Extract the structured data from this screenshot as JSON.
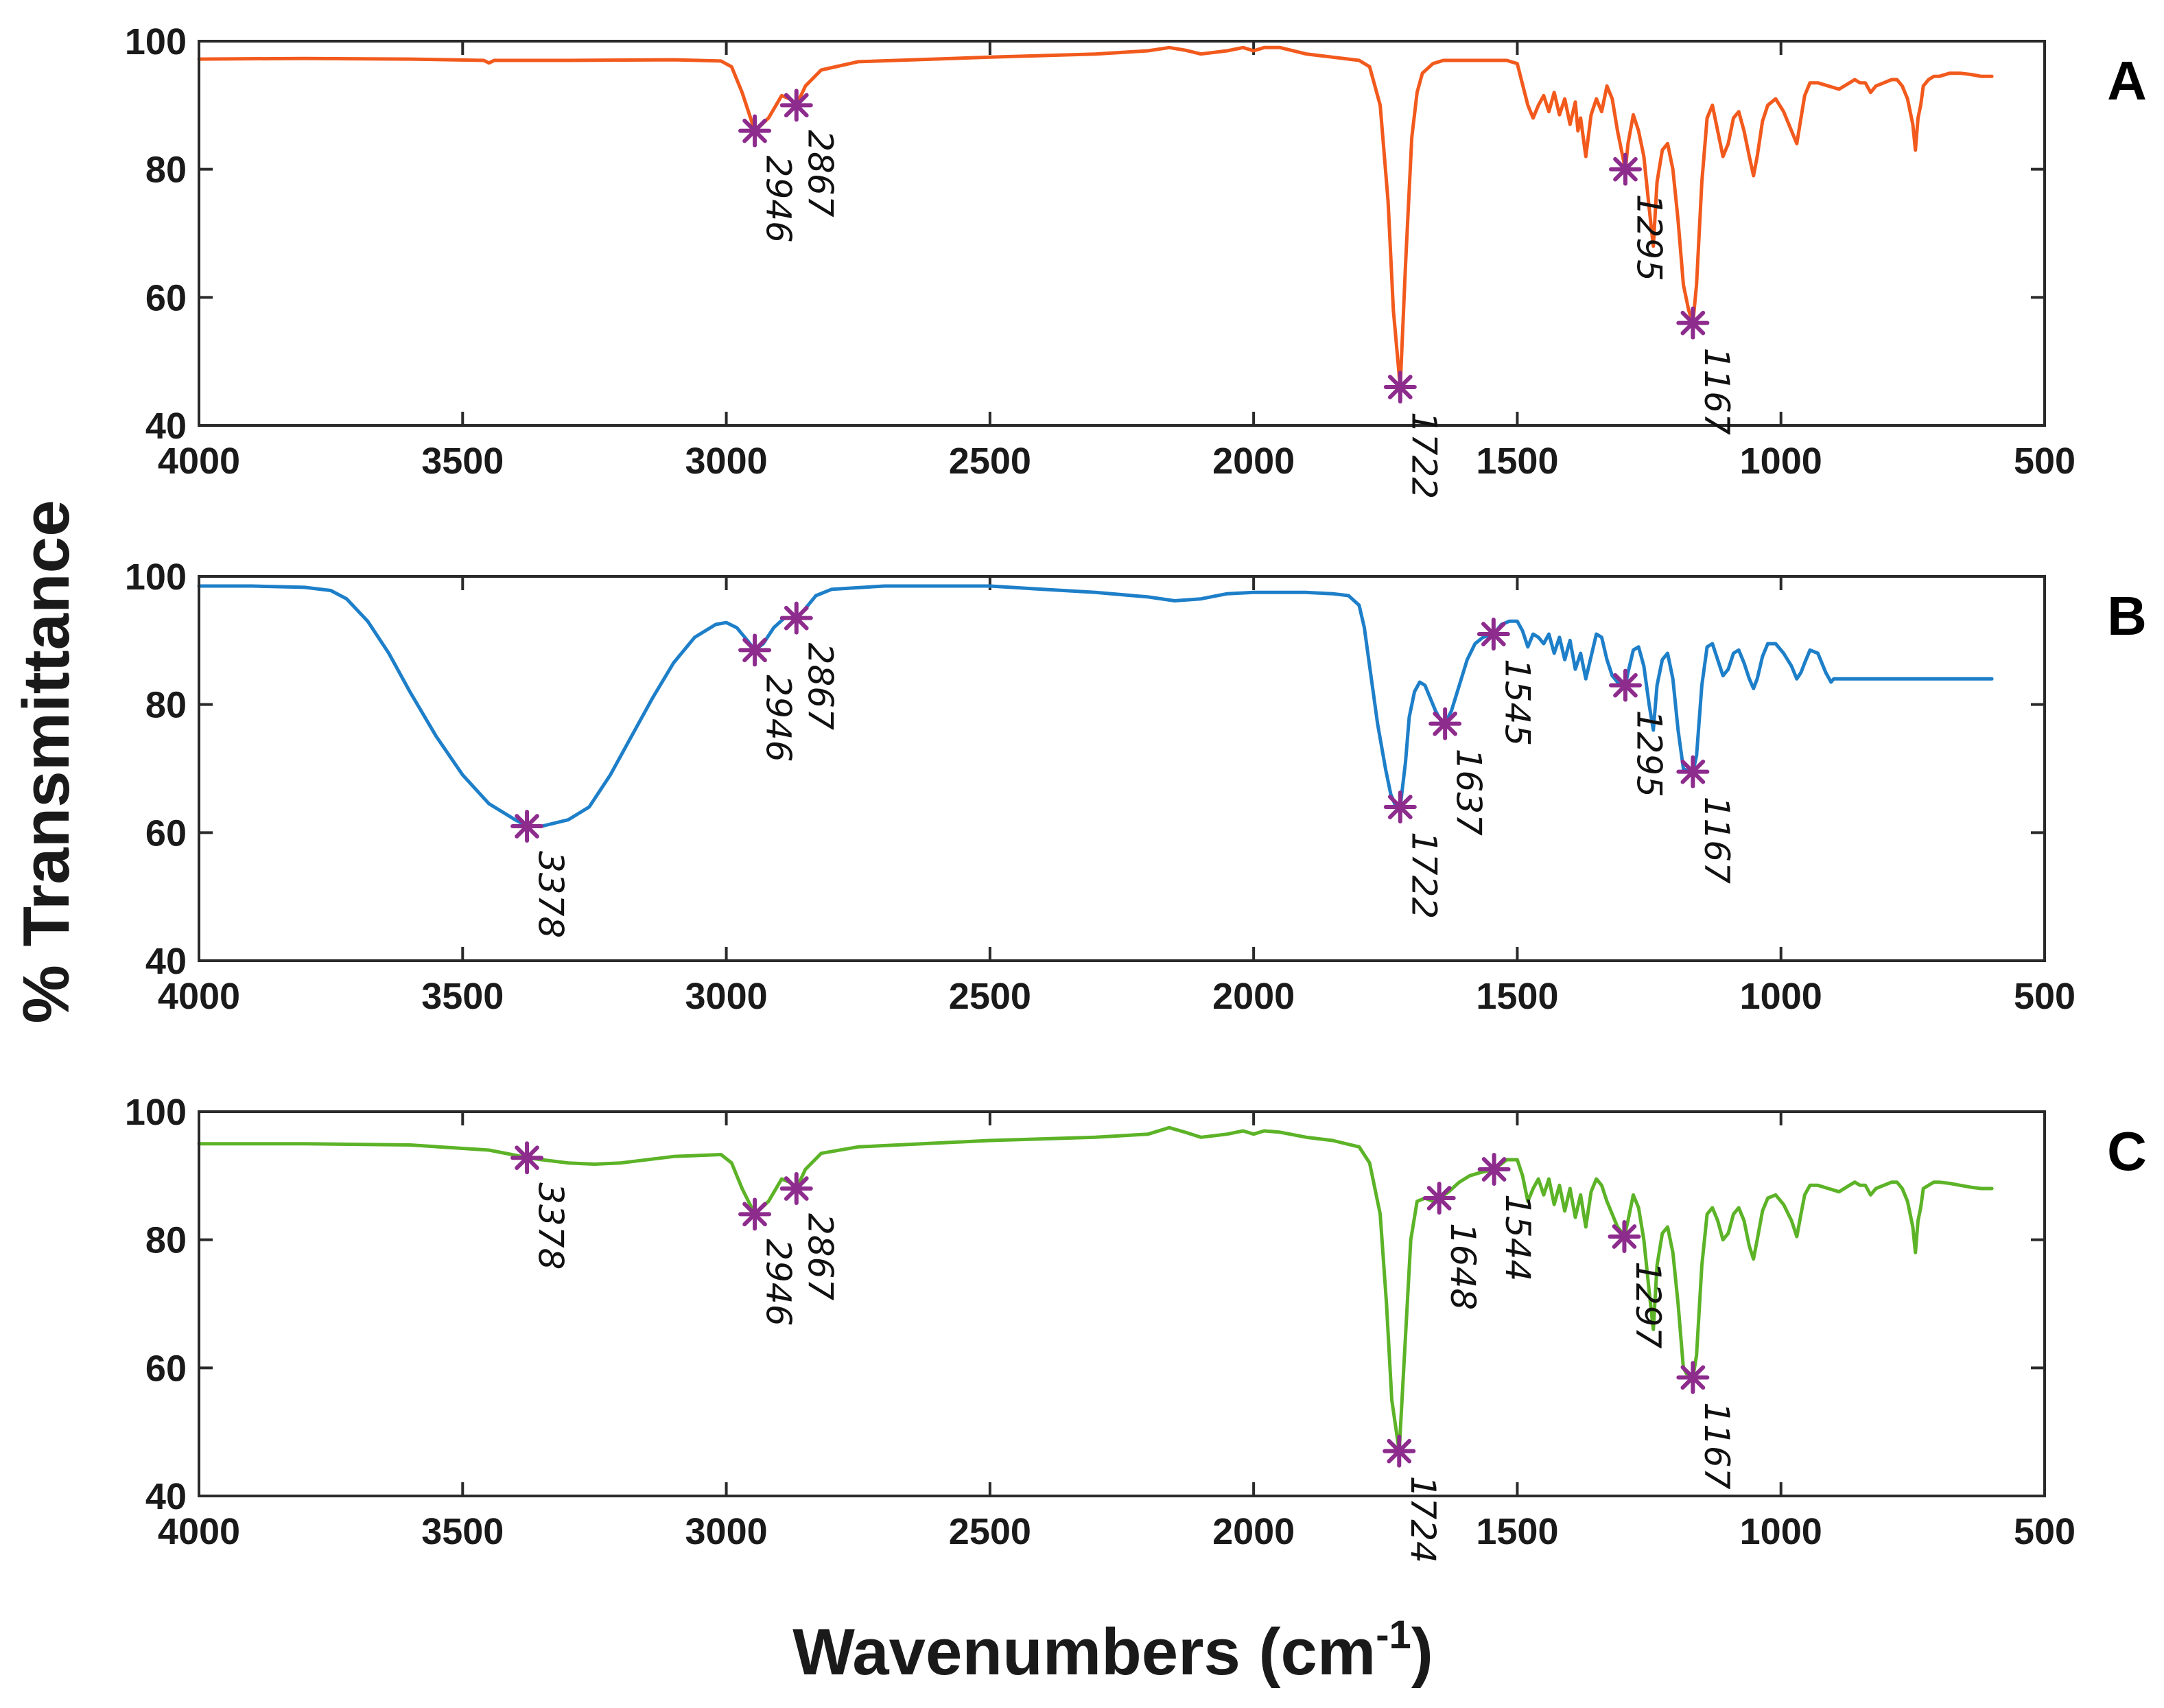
{
  "figure": {
    "ylabel": "% Transmittance",
    "xlabel": {
      "text": "Wavenumbers (cm",
      "sup": "-1",
      "suffix": ")"
    }
  },
  "colors": {
    "marker": "#8e2c8e",
    "frame": "#2a2a2a"
  },
  "chart_data": [
    {
      "type": "line",
      "panel_label": "A",
      "color": "#f25a1d",
      "xlim": [
        4000,
        500
      ],
      "ylim": [
        40,
        100
      ],
      "xticks": [
        4000,
        3500,
        3000,
        2500,
        2000,
        1500,
        1000,
        500
      ],
      "yticks": [
        40,
        60,
        80,
        100
      ],
      "series": [
        {
          "x": [
            4000,
            3800,
            3600,
            3460,
            3450,
            3440,
            3300,
            3100,
            3010,
            2990,
            2970,
            2946,
            2920,
            2895,
            2880,
            2867,
            2850,
            2820,
            2750,
            2500,
            2300,
            2200,
            2160,
            2130,
            2100,
            2050,
            2020,
            2000,
            1980,
            1950,
            1900,
            1850,
            1800,
            1780,
            1760,
            1745,
            1735,
            1722,
            1712,
            1700,
            1690,
            1680,
            1660,
            1640,
            1600,
            1560,
            1520,
            1500,
            1480,
            1470,
            1460,
            1450,
            1440,
            1430,
            1420,
            1410,
            1400,
            1390,
            1385,
            1380,
            1370,
            1360,
            1350,
            1340,
            1330,
            1320,
            1310,
            1300,
            1295,
            1290,
            1280,
            1270,
            1260,
            1250,
            1242,
            1235,
            1225,
            1215,
            1205,
            1195,
            1185,
            1175,
            1167,
            1160,
            1150,
            1140,
            1130,
            1120,
            1110,
            1100,
            1090,
            1080,
            1070,
            1060,
            1052,
            1045,
            1035,
            1025,
            1010,
            995,
            980,
            970,
            962,
            955,
            945,
            930,
            910,
            890,
            870,
            860,
            850,
            840,
            830,
            820,
            805,
            790,
            780,
            770,
            760,
            750,
            745,
            740,
            735,
            730,
            720,
            710,
            700,
            680,
            660,
            640,
            620,
            600
          ],
          "y": [
            97.2,
            97.3,
            97.2,
            97.0,
            96.6,
            97.0,
            97.0,
            97.1,
            96.9,
            96.0,
            92.0,
            86.0,
            88.0,
            91.5,
            91.0,
            90.0,
            93.0,
            95.5,
            96.8,
            97.5,
            98.0,
            98.5,
            99.0,
            98.6,
            98.0,
            98.5,
            99.0,
            98.5,
            99.0,
            99.0,
            98.0,
            97.5,
            97.0,
            96.0,
            90.0,
            75.0,
            58.0,
            46.0,
            65.0,
            85.0,
            92.0,
            95.0,
            96.5,
            97.0,
            97.0,
            97.0,
            97.0,
            96.5,
            90.0,
            88.0,
            90.0,
            91.5,
            89.0,
            92.0,
            88.5,
            91.0,
            87.0,
            90.5,
            86.0,
            88.0,
            82.0,
            88.5,
            91.0,
            89.0,
            93.0,
            91.0,
            86.0,
            82.0,
            80.0,
            84.0,
            88.5,
            86.0,
            82.0,
            74.0,
            68.0,
            78.0,
            83.0,
            84.0,
            80.0,
            72.0,
            62.0,
            58.0,
            56.0,
            62.0,
            78.0,
            88.0,
            90.0,
            86.0,
            82.0,
            84.0,
            88.0,
            89.0,
            86.0,
            82.0,
            79.0,
            82.0,
            87.5,
            90.0,
            91.0,
            89.0,
            86.0,
            84.0,
            88.0,
            91.5,
            93.5,
            93.5,
            93.0,
            92.5,
            93.5,
            94.0,
            93.5,
            93.5,
            92.0,
            93.0,
            93.5,
            94.0,
            94.0,
            93.0,
            91.0,
            87.0,
            83.0,
            88.0,
            90.0,
            93.0,
            94.0,
            94.5,
            94.5,
            95.0,
            95.0,
            94.8,
            94.5,
            94.5
          ]
        }
      ],
      "annotations": [
        {
          "label": "2946",
          "x": 2946,
          "y": 86
        },
        {
          "label": "2867",
          "x": 2867,
          "y": 90
        },
        {
          "label": "1722",
          "x": 1722,
          "y": 46
        },
        {
          "label": "1295",
          "x": 1295,
          "y": 80
        },
        {
          "label": "1167",
          "x": 1167,
          "y": 56
        }
      ]
    },
    {
      "type": "line",
      "panel_label": "B",
      "color": "#1e7fc9",
      "xlim": [
        4000,
        500
      ],
      "ylim": [
        40,
        100
      ],
      "xticks": [
        4000,
        3500,
        3000,
        2500,
        2000,
        1500,
        1000,
        500
      ],
      "yticks": [
        40,
        60,
        80,
        100
      ],
      "series": [
        {
          "x": [
            4000,
            3900,
            3800,
            3750,
            3720,
            3680,
            3640,
            3600,
            3550,
            3500,
            3450,
            3400,
            3378,
            3350,
            3300,
            3260,
            3220,
            3180,
            3140,
            3100,
            3060,
            3020,
            3000,
            2980,
            2960,
            2946,
            2930,
            2910,
            2890,
            2867,
            2850,
            2830,
            2800,
            2700,
            2500,
            2400,
            2300,
            2200,
            2150,
            2100,
            2050,
            2000,
            1950,
            1900,
            1850,
            1820,
            1800,
            1790,
            1780,
            1765,
            1750,
            1740,
            1730,
            1722,
            1712,
            1705,
            1695,
            1685,
            1675,
            1665,
            1655,
            1645,
            1637,
            1625,
            1610,
            1595,
            1580,
            1565,
            1545,
            1530,
            1515,
            1500,
            1490,
            1480,
            1470,
            1460,
            1450,
            1440,
            1430,
            1420,
            1410,
            1400,
            1390,
            1380,
            1370,
            1360,
            1350,
            1340,
            1330,
            1320,
            1310,
            1300,
            1295,
            1290,
            1280,
            1270,
            1260,
            1250,
            1242,
            1235,
            1225,
            1215,
            1205,
            1195,
            1185,
            1175,
            1167,
            1160,
            1150,
            1140,
            1130,
            1120,
            1110,
            1100,
            1090,
            1080,
            1070,
            1060,
            1052,
            1045,
            1035,
            1025,
            1010,
            995,
            980,
            970,
            962,
            955,
            945,
            930,
            915,
            905,
            900,
            850,
            800,
            700,
            600
          ],
          "y": [
            98.5,
            98.5,
            98.3,
            97.8,
            96.5,
            93.0,
            88.0,
            82.0,
            75.0,
            69.0,
            64.5,
            62.0,
            61.0,
            61.0,
            62.0,
            64.0,
            69.0,
            75.0,
            81.0,
            86.5,
            90.5,
            92.5,
            92.8,
            92.0,
            90.0,
            88.5,
            89.5,
            92.0,
            93.5,
            93.5,
            95.0,
            97.0,
            98.0,
            98.5,
            98.5,
            98.0,
            97.5,
            96.8,
            96.2,
            96.5,
            97.3,
            97.5,
            97.5,
            97.5,
            97.3,
            97.0,
            95.5,
            92.0,
            86.0,
            77.0,
            70.0,
            66.0,
            64.0,
            64.0,
            71.0,
            78.0,
            82.0,
            83.5,
            83.0,
            81.0,
            79.0,
            77.5,
            77.0,
            79.0,
            83.0,
            87.0,
            89.5,
            90.5,
            91.0,
            92.5,
            93.0,
            93.0,
            91.5,
            89.0,
            91.0,
            90.5,
            89.5,
            91.0,
            88.0,
            90.5,
            87.0,
            90.0,
            85.5,
            88.0,
            84.0,
            87.5,
            91.0,
            90.5,
            87.0,
            84.5,
            83.5,
            83.0,
            83.0,
            85.0,
            88.5,
            89.0,
            86.0,
            80.0,
            76.0,
            83.0,
            87.0,
            88.0,
            84.0,
            76.0,
            70.0,
            69.5,
            69.5,
            72.0,
            83.0,
            89.0,
            89.5,
            87.0,
            84.5,
            85.5,
            88.0,
            88.5,
            86.5,
            84.0,
            82.5,
            84.0,
            87.5,
            89.5,
            89.5,
            88.0,
            86.0,
            84.0,
            85.0,
            86.5,
            88.5,
            88.0,
            85.0,
            83.5,
            84.0,
            84.0,
            84.0,
            84.0,
            84.0
          ]
        }
      ],
      "annotations": [
        {
          "label": "3378",
          "x": 3378,
          "y": 61
        },
        {
          "label": "2946",
          "x": 2946,
          "y": 88.5
        },
        {
          "label": "2867",
          "x": 2867,
          "y": 93.5
        },
        {
          "label": "1722",
          "x": 1722,
          "y": 64
        },
        {
          "label": "1637",
          "x": 1637,
          "y": 77
        },
        {
          "label": "1545",
          "x": 1545,
          "y": 91
        },
        {
          "label": "1295",
          "x": 1295,
          "y": 83
        },
        {
          "label": "1167",
          "x": 1167,
          "y": 69.5
        }
      ]
    },
    {
      "type": "line",
      "panel_label": "C",
      "color": "#5cb327",
      "xlim": [
        4000,
        500
      ],
      "ylim": [
        40,
        100
      ],
      "xticks": [
        4000,
        3500,
        3000,
        2500,
        2000,
        1500,
        1000,
        500
      ],
      "yticks": [
        40,
        60,
        80,
        100
      ],
      "series": [
        {
          "x": [
            4000,
            3800,
            3600,
            3450,
            3400,
            3378,
            3350,
            3300,
            3250,
            3200,
            3100,
            3010,
            2990,
            2970,
            2946,
            2920,
            2895,
            2880,
            2867,
            2850,
            2820,
            2750,
            2500,
            2300,
            2200,
            2160,
            2130,
            2100,
            2050,
            2020,
            2000,
            1980,
            1950,
            1900,
            1850,
            1800,
            1780,
            1760,
            1748,
            1738,
            1724,
            1714,
            1702,
            1690,
            1675,
            1660,
            1648,
            1630,
            1610,
            1590,
            1570,
            1544,
            1520,
            1500,
            1490,
            1480,
            1470,
            1460,
            1450,
            1440,
            1430,
            1420,
            1410,
            1400,
            1390,
            1380,
            1370,
            1360,
            1350,
            1340,
            1330,
            1320,
            1310,
            1300,
            1297,
            1290,
            1280,
            1270,
            1260,
            1250,
            1242,
            1235,
            1225,
            1215,
            1205,
            1195,
            1185,
            1175,
            1167,
            1160,
            1150,
            1140,
            1130,
            1120,
            1110,
            1100,
            1090,
            1080,
            1070,
            1060,
            1052,
            1045,
            1035,
            1025,
            1010,
            995,
            980,
            970,
            962,
            955,
            945,
            930,
            910,
            890,
            870,
            860,
            850,
            840,
            830,
            820,
            805,
            790,
            780,
            770,
            760,
            750,
            745,
            740,
            735,
            730,
            720,
            710,
            700,
            680,
            660,
            640,
            620,
            600
          ],
          "y": [
            95.0,
            95.0,
            94.8,
            94.0,
            93.2,
            92.8,
            92.5,
            92.0,
            91.8,
            92.0,
            93.0,
            93.3,
            92.0,
            88.0,
            84.0,
            86.0,
            89.5,
            89.0,
            88.0,
            91.0,
            93.5,
            94.5,
            95.5,
            96.0,
            96.5,
            97.5,
            96.8,
            96.0,
            96.5,
            97.0,
            96.5,
            97.0,
            96.8,
            96.0,
            95.5,
            94.5,
            92.0,
            84.0,
            70.0,
            55.0,
            47.0,
            62.0,
            80.0,
            86.0,
            86.5,
            86.0,
            86.5,
            87.5,
            89.0,
            90.0,
            90.5,
            91.0,
            92.5,
            92.5,
            90.0,
            86.0,
            88.0,
            89.5,
            87.0,
            89.5,
            85.5,
            88.5,
            84.5,
            88.0,
            83.5,
            87.0,
            82.0,
            87.5,
            89.5,
            88.5,
            86.0,
            84.0,
            82.0,
            81.0,
            80.5,
            83.0,
            87.0,
            85.0,
            80.0,
            72.0,
            66.0,
            76.0,
            81.0,
            82.0,
            78.0,
            70.0,
            60.0,
            58.5,
            58.5,
            62.0,
            76.0,
            84.0,
            85.0,
            83.0,
            80.0,
            81.0,
            84.0,
            85.0,
            83.0,
            79.0,
            77.0,
            80.0,
            84.5,
            86.5,
            87.0,
            85.5,
            83.0,
            80.5,
            84.0,
            87.0,
            88.5,
            88.5,
            88.0,
            87.5,
            88.5,
            89.0,
            88.5,
            88.5,
            87.0,
            88.0,
            88.5,
            89.0,
            89.0,
            88.0,
            86.0,
            82.0,
            78.0,
            83.0,
            85.0,
            88.0,
            88.5,
            89.0,
            89.0,
            88.8,
            88.5,
            88.2,
            88.0,
            88.0
          ]
        }
      ],
      "annotations": [
        {
          "label": "3378",
          "x": 3378,
          "y": 92.8
        },
        {
          "label": "2946",
          "x": 2946,
          "y": 84
        },
        {
          "label": "2867",
          "x": 2867,
          "y": 88
        },
        {
          "label": "1724",
          "x": 1724,
          "y": 47
        },
        {
          "label": "1648",
          "x": 1648,
          "y": 86.5
        },
        {
          "label": "1544",
          "x": 1544,
          "y": 91
        },
        {
          "label": "1297",
          "x": 1297,
          "y": 80.5
        },
        {
          "label": "1167",
          "x": 1167,
          "y": 58.5
        }
      ]
    }
  ]
}
